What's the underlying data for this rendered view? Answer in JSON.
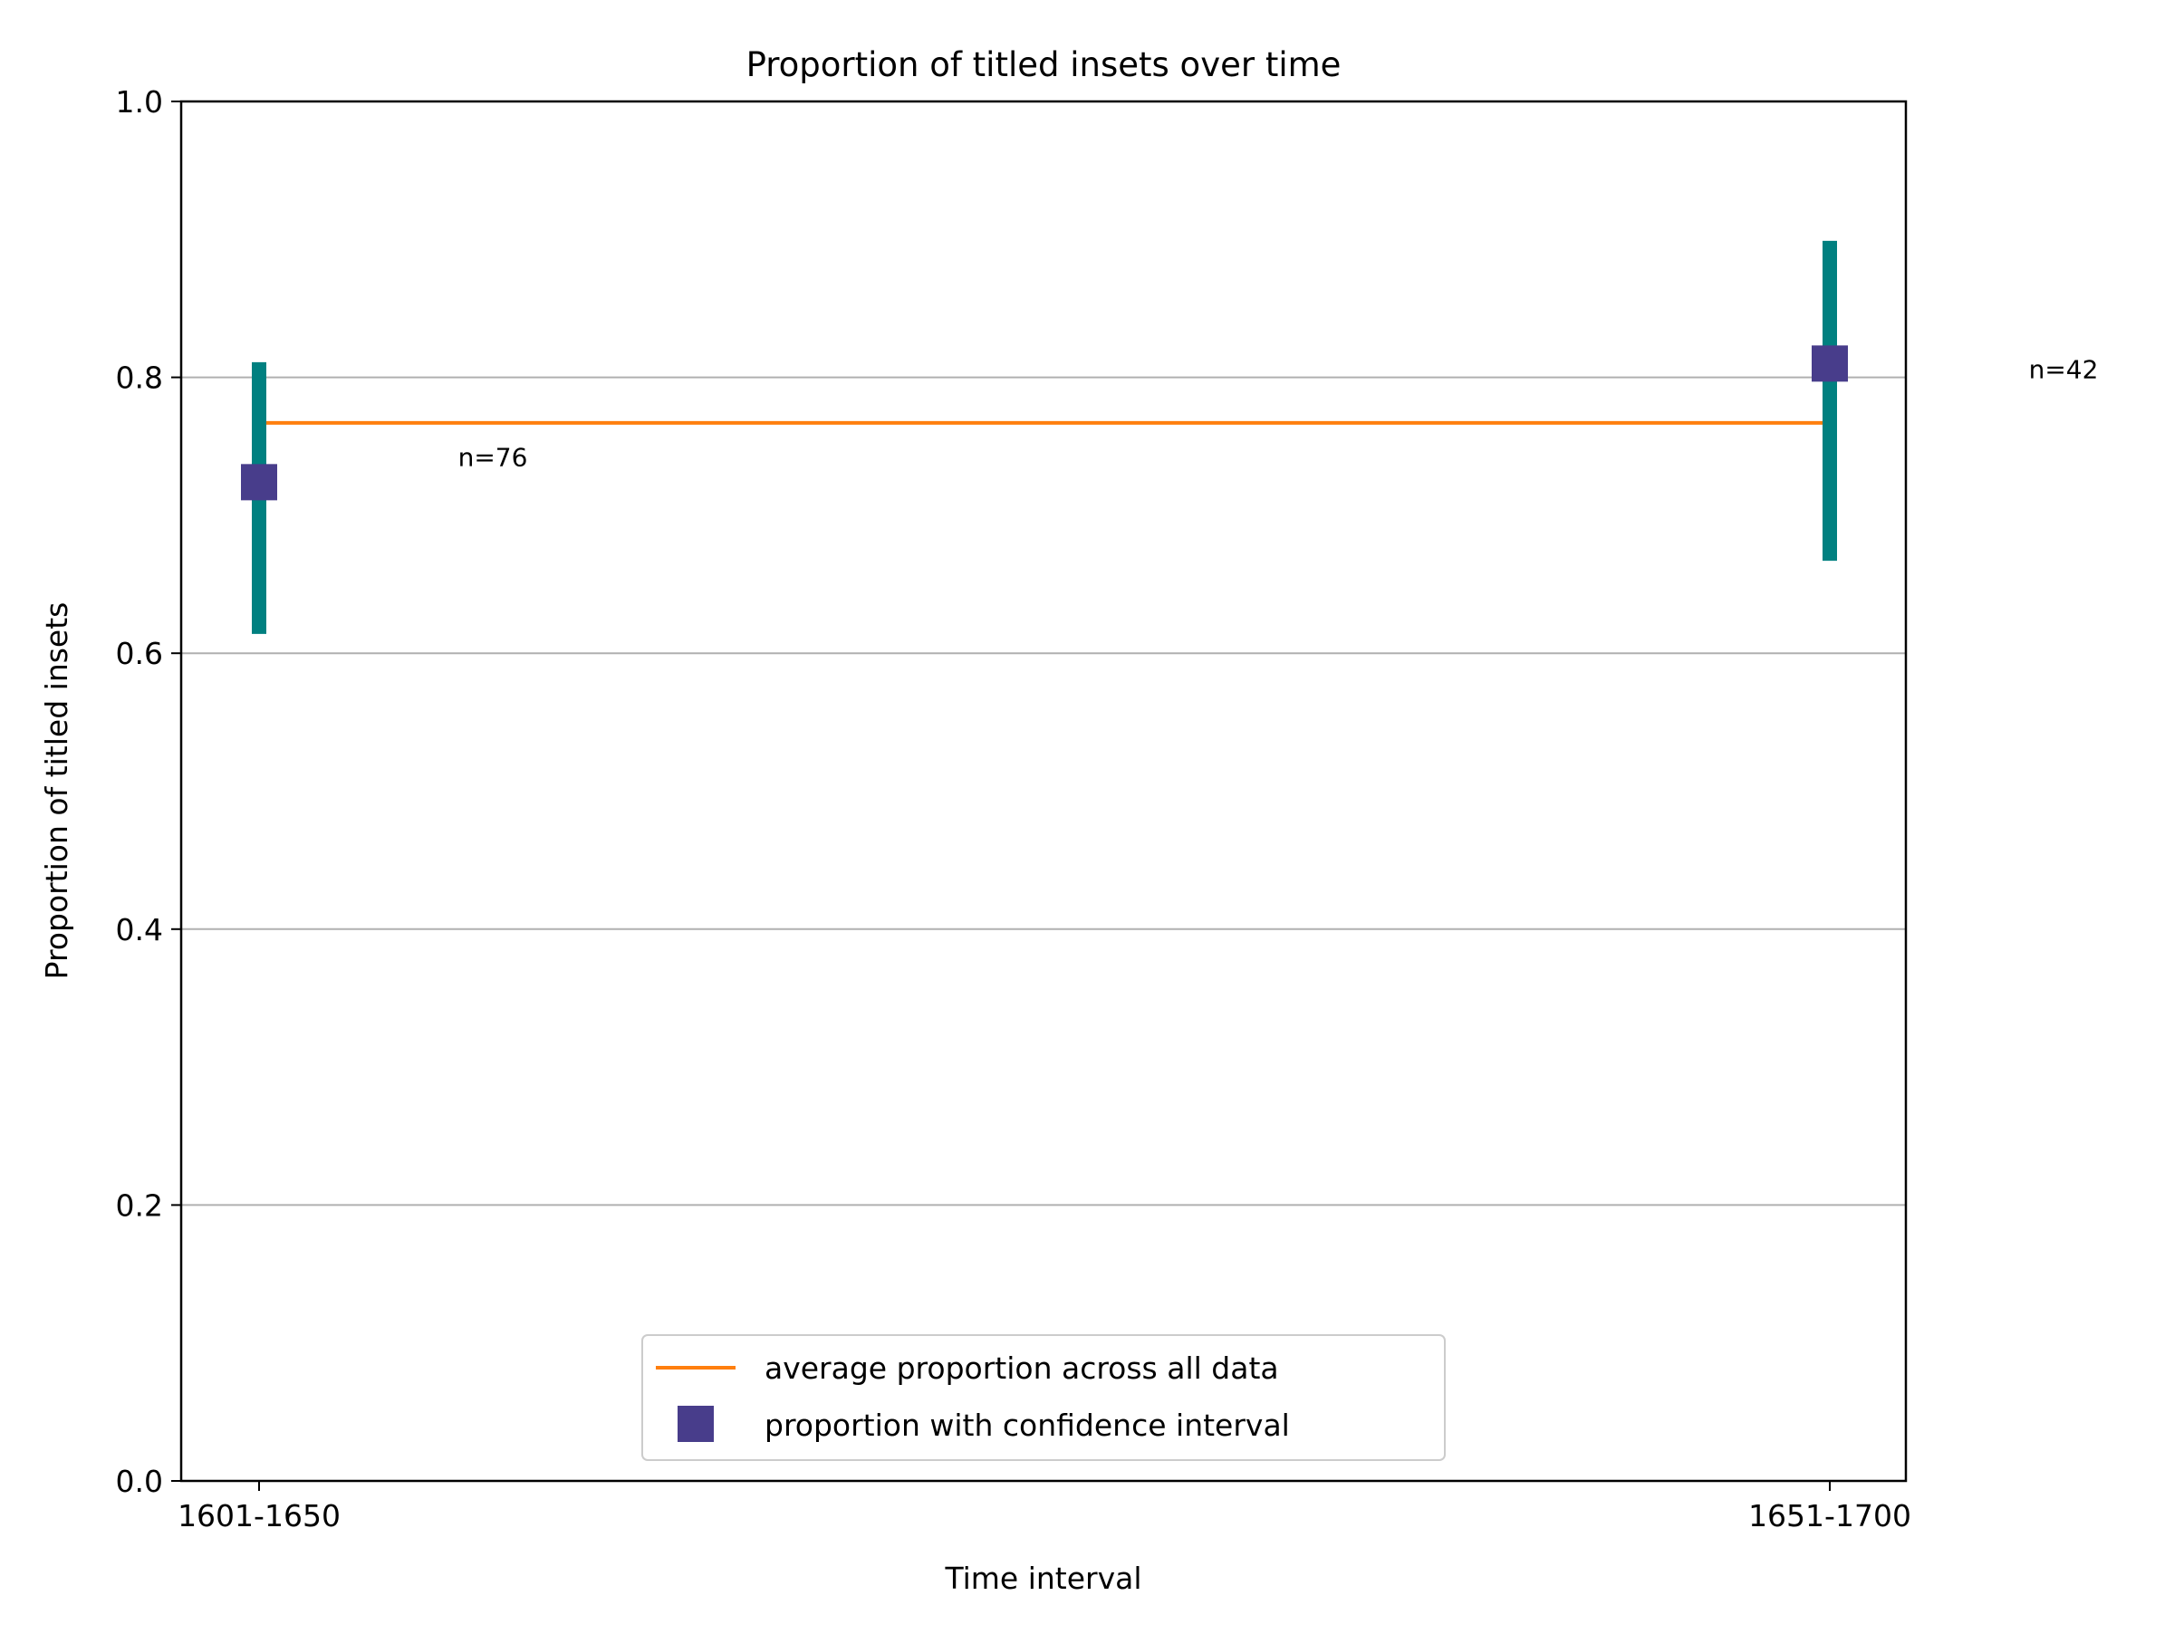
{
  "chart_data": {
    "type": "scatter",
    "title": "Proportion of titled insets over time",
    "xlabel": "Time interval",
    "ylabel": "Proportion of titled insets",
    "ylim": [
      0.0,
      1.0
    ],
    "yticks": [
      "0.0",
      "0.2",
      "0.4",
      "0.6",
      "0.8",
      "1.0"
    ],
    "categories": [
      "1601-1650",
      "1651-1700"
    ],
    "grid": "horizontal",
    "legend_position": "bottom-center",
    "series": [
      {
        "name": "proportion with confidence interval",
        "marker": "square",
        "color": "#483d8b",
        "errorbar_color": "#008080",
        "points": [
          {
            "category": "1601-1650",
            "value": 0.724,
            "ci_low": 0.614,
            "ci_high": 0.811,
            "label": "n=76"
          },
          {
            "category": "1651-1700",
            "value": 0.81,
            "ci_low": 0.667,
            "ci_high": 0.899,
            "label": "n=42"
          }
        ]
      },
      {
        "name": "average proportion across all data",
        "type": "line",
        "color": "#ff7f0e",
        "value": 0.767
      }
    ]
  }
}
